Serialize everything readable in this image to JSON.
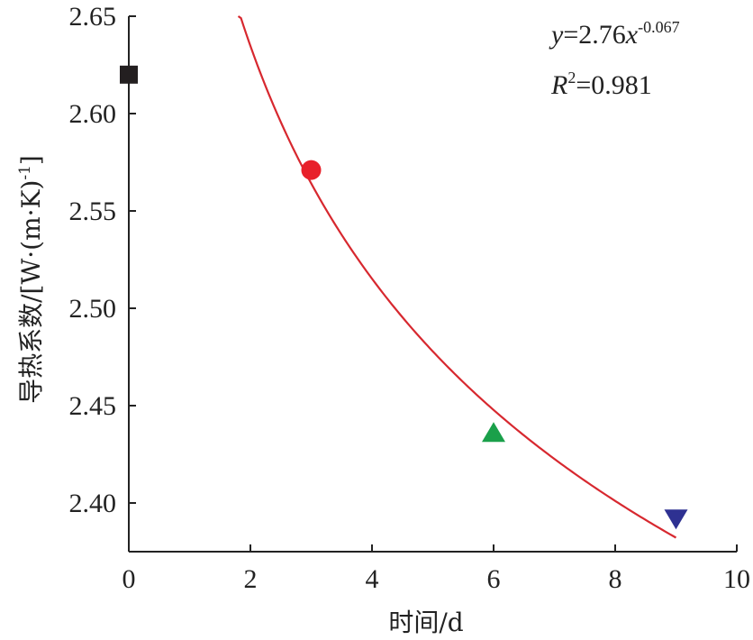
{
  "chart_data": {
    "type": "scatter",
    "xlabel": "时间/d",
    "ylabel": "导热系数/[W·(m·K)",
    "ylabel_sup": "-1",
    "ylabel_end": "]",
    "xlim": [
      0,
      10
    ],
    "ylim": [
      2.375,
      2.65
    ],
    "x_ticks": [
      0,
      2,
      4,
      6,
      8,
      10
    ],
    "x_tick_labels": [
      "0",
      "2",
      "4",
      "6",
      "8",
      "10"
    ],
    "y_ticks": [
      2.4,
      2.45,
      2.5,
      2.55,
      2.6,
      2.65
    ],
    "y_tick_labels": [
      "2.40",
      "2.45",
      "2.50",
      "2.55",
      "2.60",
      "2.65"
    ],
    "grid": false,
    "points": [
      {
        "x": 0,
        "y": 2.62,
        "marker": "square",
        "color": "#231f20"
      },
      {
        "x": 3,
        "y": 2.571,
        "marker": "circle",
        "color": "#e8202a"
      },
      {
        "x": 6,
        "y": 2.436,
        "marker": "triangle-up",
        "color": "#1aa04a"
      },
      {
        "x": 9,
        "y": 2.392,
        "marker": "triangle-down",
        "color": "#2e3192"
      }
    ],
    "fit": {
      "a": 2.76,
      "b": -0.067,
      "x_range": [
        1.8,
        9
      ],
      "color": "#d7282f"
    },
    "equation": {
      "y": "y",
      "eq": "=2.76",
      "x": "x",
      "exp": "-0.067"
    },
    "r2": {
      "r": "R",
      "sup": "2",
      "val": "=0.981"
    }
  }
}
